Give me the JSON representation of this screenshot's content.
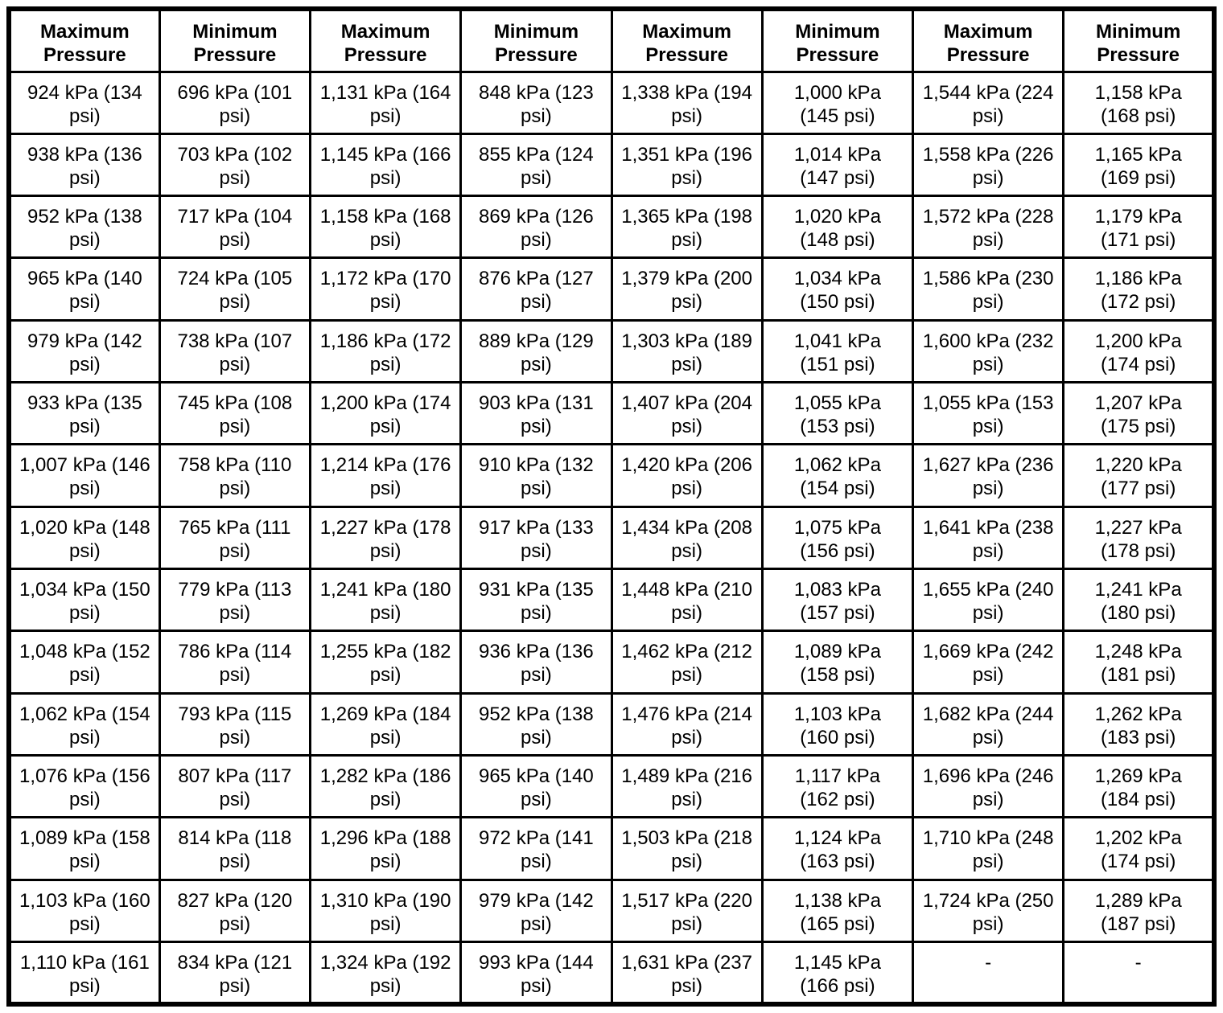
{
  "table": {
    "columns": [
      "Maximum\nPressure",
      "Minimum\nPressure",
      "Maximum\nPressure",
      "Minimum\nPressure",
      "Maximum\nPressure",
      "Minimum\nPressure",
      "Maximum\nPressure",
      "Minimum\nPressure"
    ],
    "rows": [
      [
        "924 kPa (134\npsi)",
        "696 kPa (101\npsi)",
        "1,131 kPa (164\npsi)",
        "848 kPa (123\npsi)",
        "1,338 kPa (194\npsi)",
        "1,000 kPa\n(145 psi)",
        "1,544 kPa (224\npsi)",
        "1,158 kPa\n(168 psi)"
      ],
      [
        "938 kPa (136\npsi)",
        "703 kPa (102\npsi)",
        "1,145 kPa (166\npsi)",
        "855 kPa (124\npsi)",
        "1,351 kPa (196\npsi)",
        "1,014 kPa\n(147 psi)",
        "1,558 kPa (226\npsi)",
        "1,165 kPa\n(169 psi)"
      ],
      [
        "952 kPa (138\npsi)",
        "717 kPa (104\npsi)",
        "1,158 kPa (168\npsi)",
        "869 kPa (126\npsi)",
        "1,365 kPa (198\npsi)",
        "1,020 kPa\n(148 psi)",
        "1,572 kPa (228\npsi)",
        "1,179 kPa\n(171 psi)"
      ],
      [
        "965 kPa (140\npsi)",
        "724 kPa (105\npsi)",
        "1,172 kPa (170\npsi)",
        "876 kPa (127\npsi)",
        "1,379 kPa (200\npsi)",
        "1,034 kPa\n(150 psi)",
        "1,586 kPa (230\npsi)",
        "1,186 kPa\n(172 psi)"
      ],
      [
        "979 kPa (142\npsi)",
        "738 kPa (107\npsi)",
        "1,186 kPa (172\npsi)",
        "889 kPa (129\npsi)",
        "1,303 kPa (189\npsi)",
        "1,041 kPa\n(151 psi)",
        "1,600 kPa (232\npsi)",
        "1,200 kPa\n(174 psi)"
      ],
      [
        "933 kPa (135\npsi)",
        "745 kPa (108\npsi)",
        "1,200 kPa (174\npsi)",
        "903 kPa (131\npsi)",
        "1,407 kPa (204\npsi)",
        "1,055 kPa\n(153 psi)",
        "1,055 kPa (153\npsi)",
        "1,207 kPa\n(175 psi)"
      ],
      [
        "1,007 kPa (146\npsi)",
        "758 kPa (110\npsi)",
        "1,214 kPa (176\npsi)",
        "910 kPa (132\npsi)",
        "1,420 kPa (206\npsi)",
        "1,062 kPa\n(154 psi)",
        "1,627 kPa (236\npsi)",
        "1,220 kPa\n(177 psi)"
      ],
      [
        "1,020 kPa (148\npsi)",
        "765 kPa (111\npsi)",
        "1,227 kPa (178\npsi)",
        "917 kPa (133\npsi)",
        "1,434 kPa (208\npsi)",
        "1,075 kPa\n(156 psi)",
        "1,641 kPa (238\npsi)",
        "1,227 kPa\n(178 psi)"
      ],
      [
        "1,034 kPa (150\npsi)",
        "779 kPa (113\npsi)",
        "1,241 kPa (180\npsi)",
        "931 kPa (135\npsi)",
        "1,448 kPa (210\npsi)",
        "1,083 kPa\n(157 psi)",
        "1,655 kPa (240\npsi)",
        "1,241 kPa\n(180 psi)"
      ],
      [
        "1,048 kPa (152\npsi)",
        "786 kPa (114\npsi)",
        "1,255 kPa (182\npsi)",
        "936 kPa (136\npsi)",
        "1,462 kPa (212\npsi)",
        "1,089 kPa\n(158 psi)",
        "1,669 kPa (242\npsi)",
        "1,248 kPa\n(181 psi)"
      ],
      [
        "1,062 kPa (154\npsi)",
        "793 kPa (115\npsi)",
        "1,269 kPa (184\npsi)",
        "952 kPa (138\npsi)",
        "1,476 kPa (214\npsi)",
        "1,103 kPa\n(160 psi)",
        "1,682 kPa (244\npsi)",
        "1,262 kPa\n(183 psi)"
      ],
      [
        "1,076 kPa (156\npsi)",
        "807 kPa (117\npsi)",
        "1,282 kPa (186\npsi)",
        "965 kPa (140\npsi)",
        "1,489 kPa (216\npsi)",
        "1,117 kPa\n(162 psi)",
        "1,696 kPa (246\npsi)",
        "1,269 kPa\n(184 psi)"
      ],
      [
        "1,089 kPa (158\npsi)",
        "814 kPa (118\npsi)",
        "1,296 kPa (188\npsi)",
        "972 kPa (141\npsi)",
        "1,503 kPa (218\npsi)",
        "1,124 kPa\n(163 psi)",
        "1,710 kPa (248\npsi)",
        "1,202 kPa\n(174 psi)"
      ],
      [
        "1,103 kPa (160\npsi)",
        "827 kPa (120\npsi)",
        "1,310 kPa (190\npsi)",
        "979 kPa (142\npsi)",
        "1,517 kPa (220\npsi)",
        "1,138 kPa\n(165 psi)",
        "1,724 kPa (250\npsi)",
        "1,289 kPa\n(187 psi)"
      ],
      [
        "1,110 kPa (161\npsi)",
        "834 kPa (121\npsi)",
        "1,324 kPa (192\npsi)",
        "993 kPa (144\npsi)",
        "1,631 kPa (237\npsi)",
        "1,145 kPa\n(166 psi)",
        "-",
        "-"
      ]
    ]
  }
}
